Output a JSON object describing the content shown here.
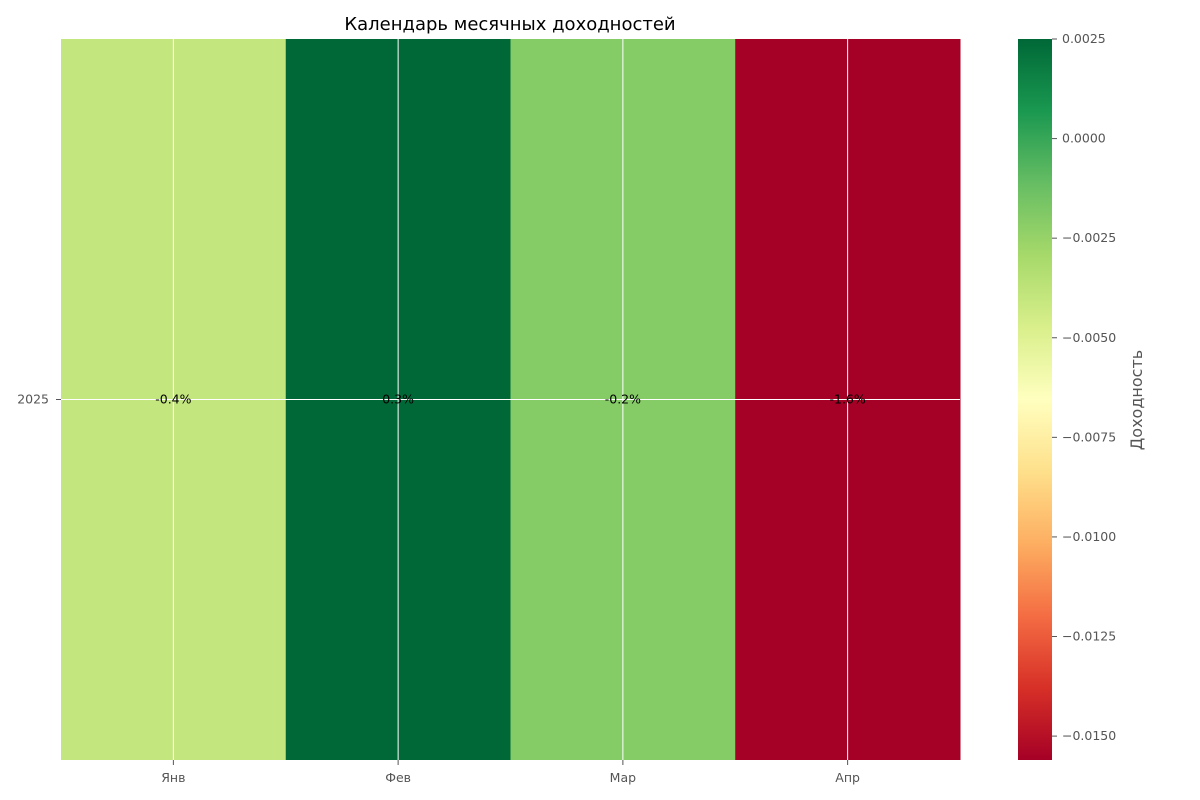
{
  "chart_data": {
    "type": "heatmap",
    "title": "Календарь месячных доходностей",
    "x_categories": [
      "Янв",
      "Фев",
      "Мар",
      "Апр"
    ],
    "y_categories": [
      "2025"
    ],
    "values": [
      [
        -0.004,
        0.003,
        -0.002,
        -0.016
      ]
    ],
    "cell_labels": [
      [
        "-0.4%",
        "0.3%",
        "-0.2%",
        "-1.6%"
      ]
    ],
    "colormap": "RdYlGn",
    "colorbar": {
      "label": "Доходность",
      "vmin": -0.0156,
      "vmax": 0.0025,
      "ticks": [
        0.0025,
        0.0,
        -0.0025,
        -0.005,
        -0.0075,
        -0.01,
        -0.0125,
        -0.015
      ],
      "tick_labels": [
        "0.0025",
        "0.0000",
        "−0.0025",
        "−0.0050",
        "−0.0075",
        "−0.0100",
        "−0.0125",
        "−0.0150"
      ]
    },
    "grid": true,
    "colors": {
      "grid": "#ffffff",
      "tick": "#555555",
      "cell_text": "#000000"
    }
  }
}
